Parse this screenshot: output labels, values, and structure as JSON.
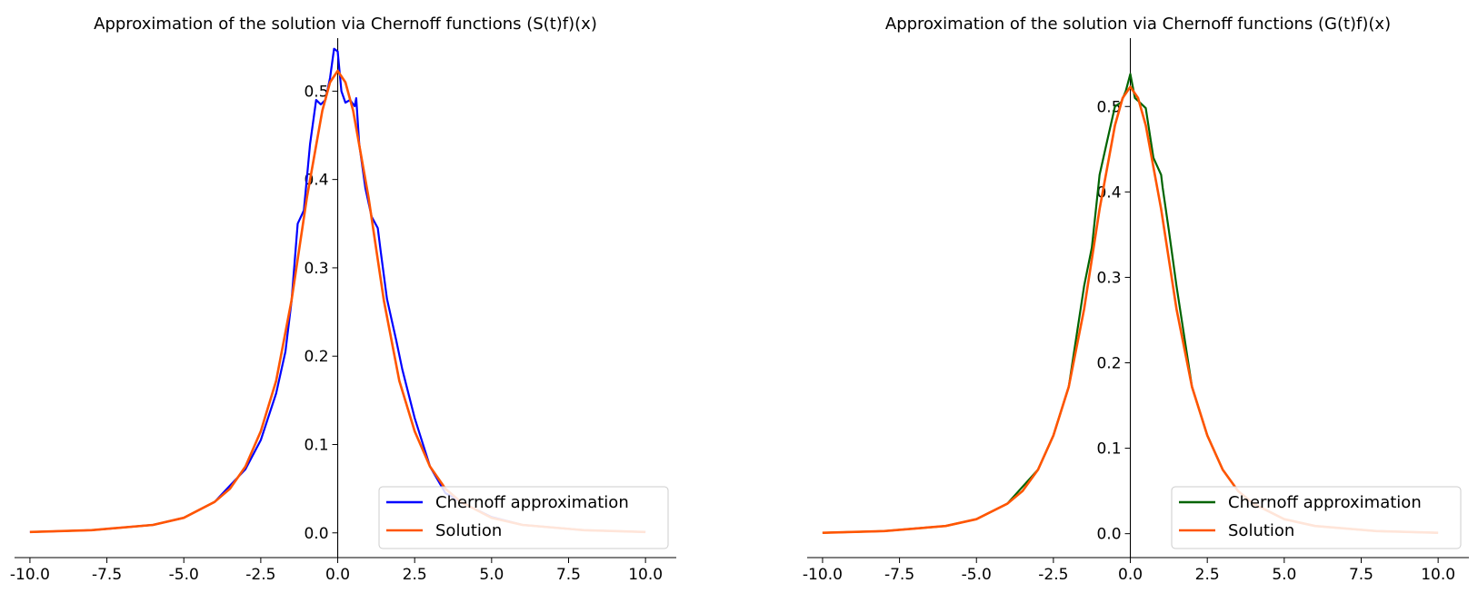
{
  "chart_data": [
    {
      "type": "line",
      "title": "Approximation of the solution via Chernoff functions (S(t)f)(x)",
      "xlabel": "",
      "ylabel": "",
      "xlim": [
        -10.5,
        11.0
      ],
      "ylim": [
        -0.028,
        0.56
      ],
      "xticks": [
        "-10.0",
        "-7.5",
        "-5.0",
        "-2.5",
        "0.0",
        "2.5",
        "5.0",
        "7.5",
        "10.0"
      ],
      "yticks": [
        "0.0",
        "0.1",
        "0.2",
        "0.3",
        "0.4",
        "0.5"
      ],
      "spines": "zero-centered y axis, bottom x axis",
      "grid": false,
      "legend_position": "lower right",
      "series": [
        {
          "name": "Chernoff approximation",
          "color": "#0000ff",
          "x": [
            -10,
            -8,
            -6,
            -5,
            -4,
            -3,
            -2.5,
            -2,
            -1.7,
            -1.5,
            -1.3,
            -1.1,
            -0.9,
            -0.7,
            -0.55,
            -0.4,
            -0.25,
            -0.12,
            0,
            0.12,
            0.25,
            0.4,
            0.55,
            0.6,
            0.7,
            0.9,
            1.1,
            1.3,
            1.4,
            1.6,
            1.9,
            2.1,
            2.5,
            3,
            3.5,
            4,
            5,
            6,
            8,
            10
          ],
          "values": [
            0.001,
            0.003,
            0.009,
            0.017,
            0.035,
            0.072,
            0.105,
            0.158,
            0.205,
            0.262,
            0.35,
            0.365,
            0.44,
            0.49,
            0.485,
            0.49,
            0.515,
            0.548,
            0.545,
            0.5,
            0.487,
            0.49,
            0.483,
            0.492,
            0.44,
            0.39,
            0.358,
            0.345,
            0.318,
            0.265,
            0.218,
            0.185,
            0.13,
            0.075,
            0.045,
            0.035,
            0.018,
            0.009,
            0.003,
            0.001
          ]
        },
        {
          "name": "Solution",
          "color": "#ff5500",
          "x": [
            -10,
            -8,
            -6,
            -5,
            -4,
            -3.5,
            -3,
            -2.5,
            -2,
            -1.5,
            -1,
            -0.5,
            -0.25,
            0,
            0.25,
            0.5,
            1,
            1.5,
            2,
            2.5,
            3,
            3.5,
            4,
            5,
            6,
            8,
            10
          ],
          "values": [
            0.001,
            0.003,
            0.009,
            0.017,
            0.035,
            0.05,
            0.075,
            0.115,
            0.172,
            0.263,
            0.38,
            0.478,
            0.51,
            0.523,
            0.51,
            0.478,
            0.38,
            0.263,
            0.172,
            0.115,
            0.075,
            0.05,
            0.035,
            0.017,
            0.009,
            0.003,
            0.001
          ]
        }
      ]
    },
    {
      "type": "line",
      "title": "Approximation of the solution via Chernoff functions (G(t)f)(x)",
      "xlabel": "",
      "ylabel": "",
      "xlim": [
        -10.5,
        11.0
      ],
      "ylim": [
        -0.028,
        0.58
      ],
      "xticks": [
        "-10.0",
        "-7.5",
        "-5.0",
        "-2.5",
        "0.0",
        "2.5",
        "5.0",
        "7.5",
        "10.0"
      ],
      "yticks": [
        "0.0",
        "0.1",
        "0.2",
        "0.3",
        "0.4",
        "0.5"
      ],
      "spines": "zero-centered y axis, bottom x axis",
      "grid": false,
      "legend_position": "lower right",
      "series": [
        {
          "name": "Chernoff approximation",
          "color": "#006400",
          "x": [
            -10,
            -8,
            -6,
            -5,
            -4,
            -3,
            -2.5,
            -2,
            -1.5,
            -1.25,
            -1,
            -0.75,
            -0.5,
            -0.3,
            -0.15,
            0,
            0.15,
            0.3,
            0.5,
            0.75,
            1,
            1.05,
            1.25,
            1.5,
            2,
            2.5,
            3,
            3.5,
            4,
            5,
            6,
            8,
            10
          ],
          "values": [
            0.001,
            0.003,
            0.009,
            0.017,
            0.035,
            0.075,
            0.115,
            0.172,
            0.29,
            0.335,
            0.42,
            0.46,
            0.5,
            0.505,
            0.518,
            0.538,
            0.51,
            0.505,
            0.498,
            0.44,
            0.42,
            0.405,
            0.355,
            0.29,
            0.172,
            0.115,
            0.075,
            0.05,
            0.035,
            0.017,
            0.009,
            0.003,
            0.001
          ]
        },
        {
          "name": "Solution",
          "color": "#ff5500",
          "x": [
            -10,
            -8,
            -6,
            -5,
            -4,
            -3.5,
            -3,
            -2.5,
            -2,
            -1.5,
            -1,
            -0.5,
            -0.25,
            0,
            0.25,
            0.5,
            1,
            1.5,
            2,
            2.5,
            3,
            3.5,
            4,
            5,
            6,
            8,
            10
          ],
          "values": [
            0.001,
            0.003,
            0.009,
            0.017,
            0.035,
            0.05,
            0.075,
            0.115,
            0.172,
            0.263,
            0.38,
            0.478,
            0.51,
            0.523,
            0.51,
            0.478,
            0.38,
            0.263,
            0.172,
            0.115,
            0.075,
            0.05,
            0.035,
            0.017,
            0.009,
            0.003,
            0.001
          ]
        }
      ]
    }
  ]
}
